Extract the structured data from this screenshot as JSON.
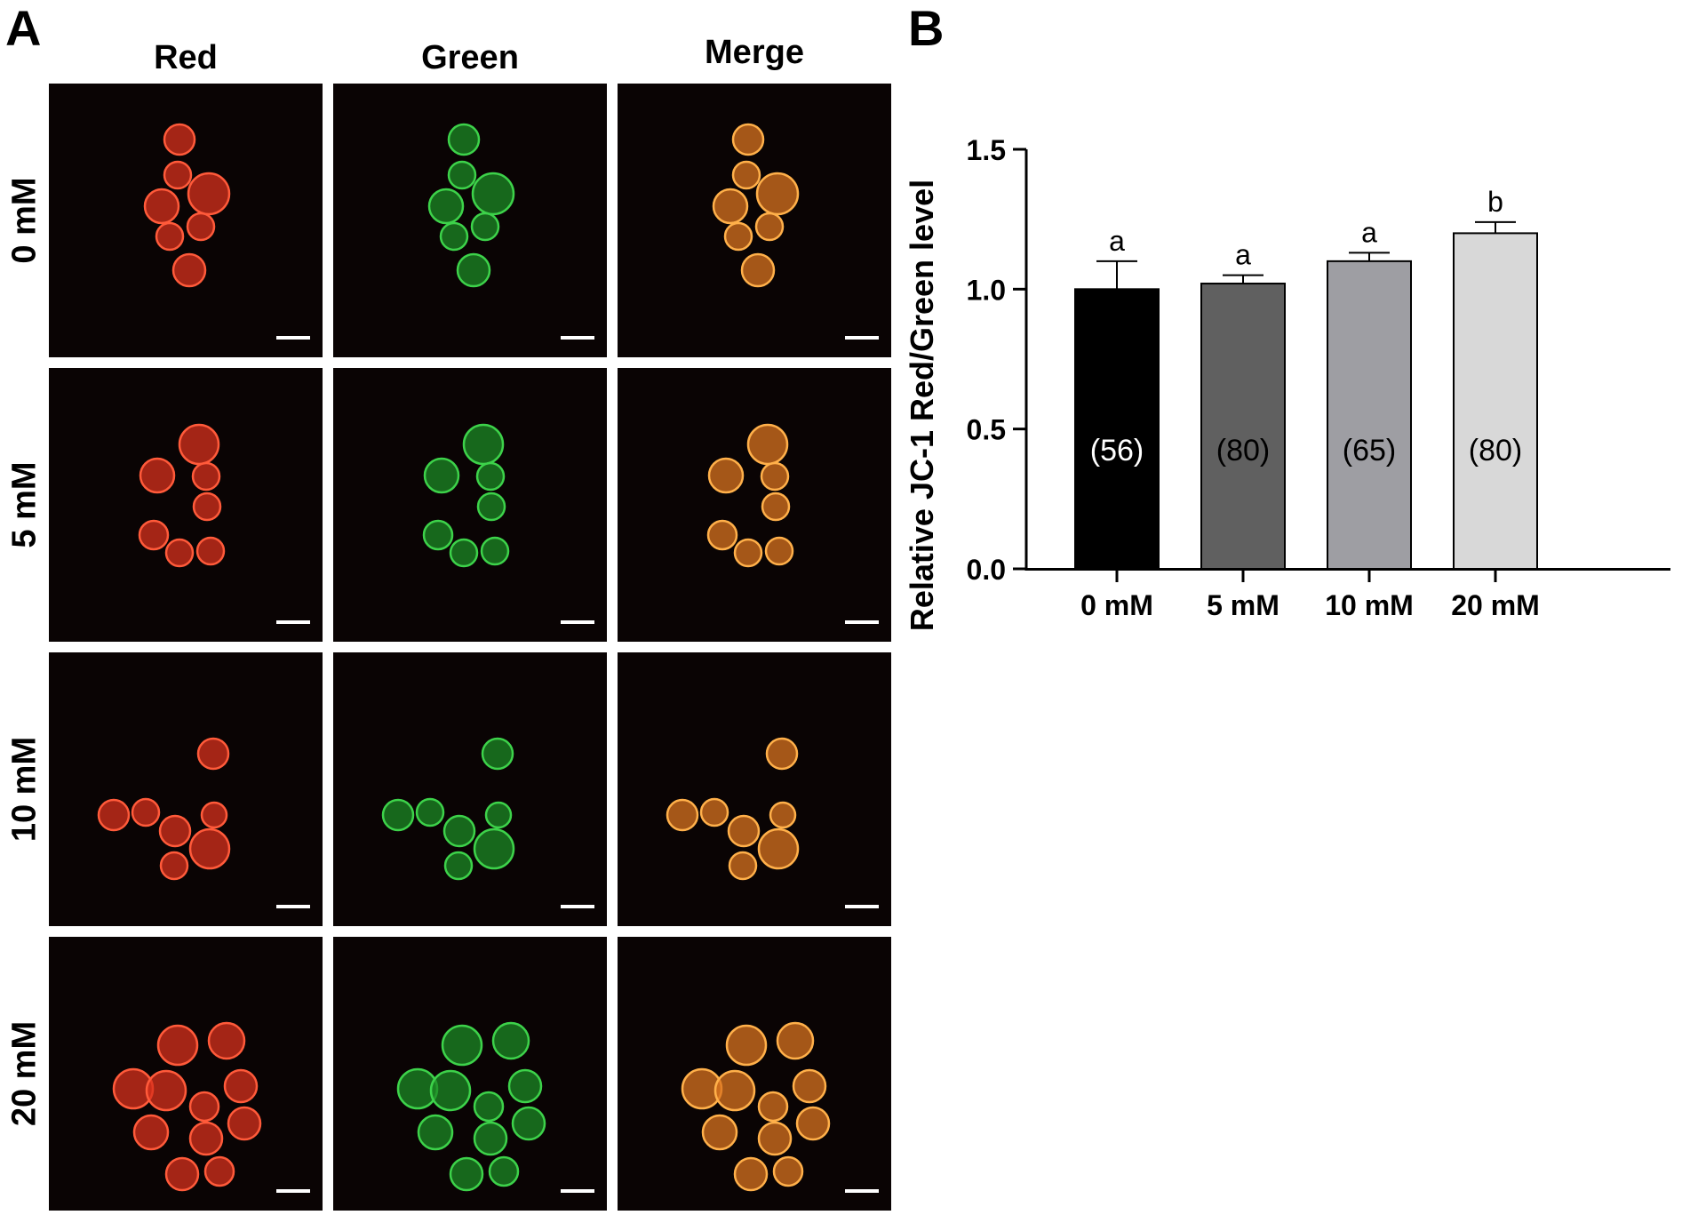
{
  "panel_a": {
    "letter": "A",
    "columns": [
      "Red",
      "Green",
      "Merge"
    ],
    "rows": [
      "0 mM",
      "5 mM",
      "10 mM",
      "20 mM"
    ],
    "channel_colors": {
      "Red": {
        "fill": "#d8301c",
        "edge": "#ff5a3a"
      },
      "Green": {
        "fill": "#1c8a24",
        "edge": "#3dd24a"
      },
      "Merge": {
        "fill": "#d9731f",
        "edge": "#ffb04a"
      }
    }
  },
  "panel_b": {
    "letter": "B",
    "chart_data": {
      "type": "bar",
      "categories": [
        "0 mM",
        "5 mM",
        "10 mM",
        "20 mM"
      ],
      "values": [
        1.0,
        1.02,
        1.1,
        1.2
      ],
      "errors": [
        0.1,
        0.03,
        0.03,
        0.04
      ],
      "significance_letters": [
        "a",
        "a",
        "a",
        "b"
      ],
      "n_labels": [
        "(56)",
        "(80)",
        "(65)",
        "(80)"
      ],
      "bar_colors": [
        "#000000",
        "#606060",
        "#9e9ea3",
        "#d8d8d8"
      ],
      "n_label_colors": [
        "#ffffff",
        "#000000",
        "#000000",
        "#000000"
      ],
      "ylabel": "Relative JC-1 Red/Green level",
      "xlabel": "",
      "ylim": [
        0,
        1.5
      ],
      "yticks": [
        "0.0",
        "0.5",
        "1.0",
        "1.5"
      ],
      "grid": false
    }
  }
}
